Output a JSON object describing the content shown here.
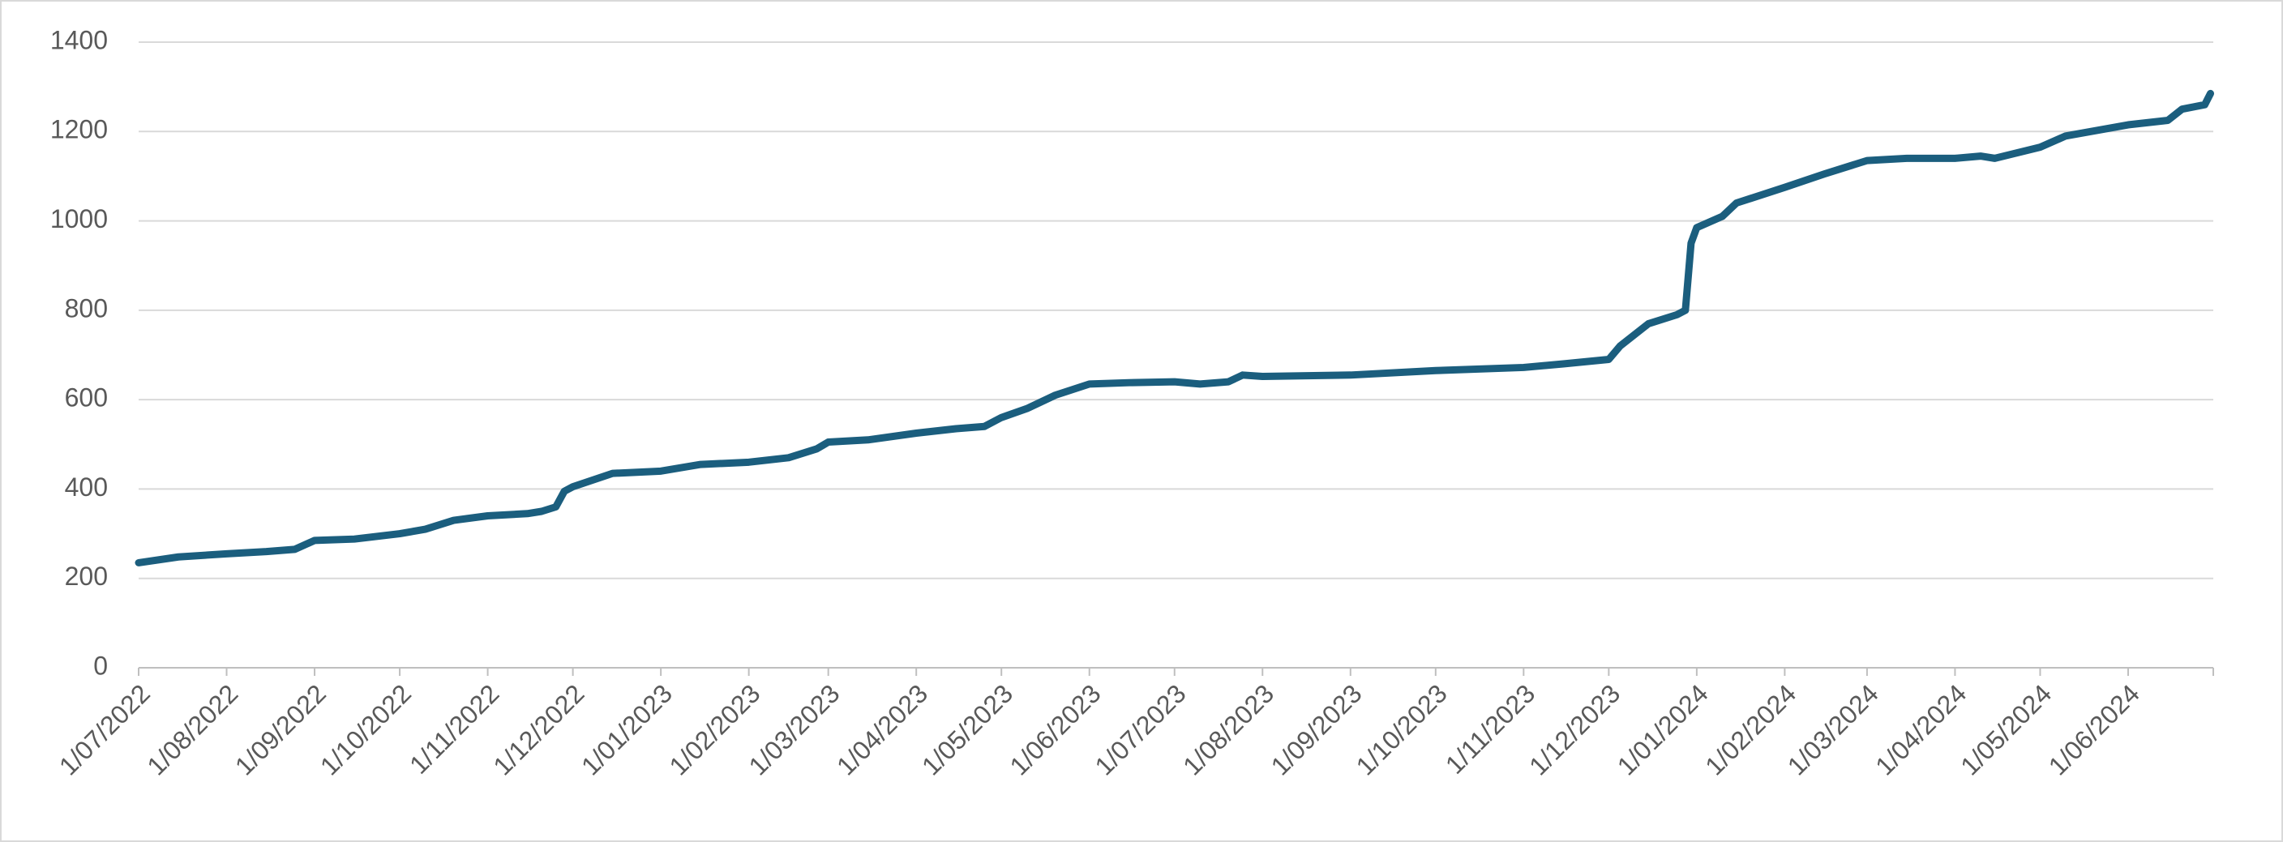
{
  "chart_data": {
    "type": "line",
    "x": [
      "1/07/2022",
      "15/07/2022",
      "1/08/2022",
      "15/08/2022",
      "25/08/2022",
      "1/09/2022",
      "15/09/2022",
      "1/10/2022",
      "10/10/2022",
      "20/10/2022",
      "1/11/2022",
      "15/11/2022",
      "20/11/2022",
      "25/11/2022",
      "28/11/2022",
      "1/12/2022",
      "15/12/2022",
      "1/01/2023",
      "15/01/2023",
      "1/02/2023",
      "15/02/2023",
      "25/02/2023",
      "1/03/2023",
      "15/03/2023",
      "1/04/2023",
      "15/04/2023",
      "25/04/2023",
      "1/05/2023",
      "10/05/2023",
      "20/05/2023",
      "1/06/2023",
      "15/06/2023",
      "1/07/2023",
      "10/07/2023",
      "20/07/2023",
      "25/07/2023",
      "1/08/2023",
      "1/09/2023",
      "1/10/2023",
      "1/11/2023",
      "15/11/2023",
      "1/12/2023",
      "5/12/2023",
      "15/12/2023",
      "25/12/2023",
      "28/12/2023",
      "30/12/2023",
      "1/01/2024",
      "10/01/2024",
      "15/01/2024",
      "1/02/2024",
      "15/02/2024",
      "1/03/2024",
      "15/03/2024",
      "1/04/2024",
      "10/04/2024",
      "15/04/2024",
      "1/05/2024",
      "10/05/2024",
      "1/06/2024",
      "15/06/2024",
      "20/06/2024",
      "28/06/2024",
      "30/06/2024"
    ],
    "series": [
      {
        "color": "#1b5e7e",
        "values": [
          235,
          248,
          255,
          260,
          265,
          285,
          288,
          300,
          310,
          330,
          340,
          345,
          350,
          360,
          395,
          405,
          435,
          440,
          455,
          460,
          470,
          490,
          505,
          510,
          525,
          535,
          540,
          560,
          580,
          610,
          635,
          638,
          640,
          635,
          640,
          655,
          652,
          655,
          665,
          672,
          680,
          690,
          720,
          770,
          790,
          800,
          950,
          985,
          1010,
          1040,
          1075,
          1105,
          1135,
          1140,
          1140,
          1145,
          1140,
          1165,
          1190,
          1215,
          1225,
          1250,
          1260,
          1285
        ]
      }
    ],
    "xlim": [
      "1/07/2022",
      "1/07/2024"
    ],
    "xticks": [
      "1/07/2022",
      "1/08/2022",
      "1/09/2022",
      "1/10/2022",
      "1/11/2022",
      "1/12/2022",
      "1/01/2023",
      "1/02/2023",
      "1/03/2023",
      "1/04/2023",
      "1/05/2023",
      "1/06/2023",
      "1/07/2023",
      "1/08/2023",
      "1/09/2023",
      "1/10/2023",
      "1/11/2023",
      "1/12/2023",
      "1/01/2024",
      "1/02/2024",
      "1/03/2024",
      "1/04/2024",
      "1/05/2024",
      "1/06/2024"
    ],
    "ylim": [
      0,
      1400
    ],
    "yticks": [
      0,
      200,
      400,
      600,
      800,
      1000,
      1200,
      1400
    ],
    "grid": true
  }
}
